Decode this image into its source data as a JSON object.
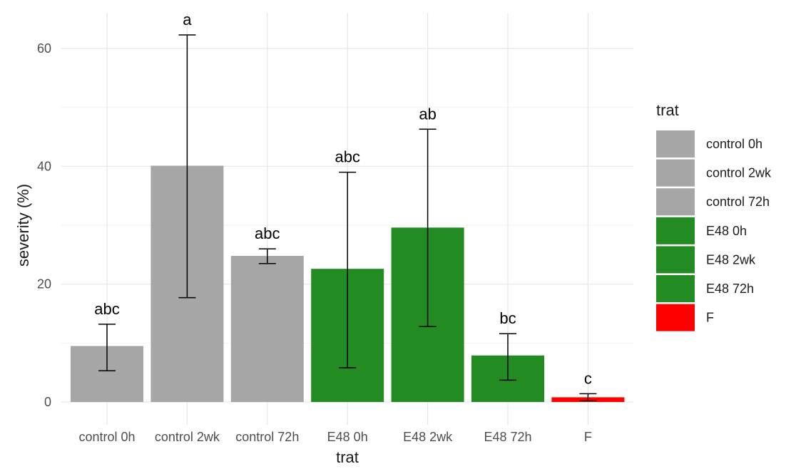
{
  "chart_data": {
    "type": "bar",
    "title": "",
    "xlabel": "trat",
    "ylabel": "severity (%)",
    "ylim": [
      0,
      66
    ],
    "yticks": [
      0,
      20,
      40,
      60
    ],
    "grid": true,
    "legend": {
      "title": "trat",
      "placement": "right",
      "entries": [
        {
          "label": "control 0h",
          "color": "#a6a6a6"
        },
        {
          "label": "control 2wk",
          "color": "#a6a6a6"
        },
        {
          "label": "control 72h",
          "color": "#a6a6a6"
        },
        {
          "label": "E48 0h",
          "color": "#228b22"
        },
        {
          "label": "E48 2wk",
          "color": "#228b22"
        },
        {
          "label": "E48 72h",
          "color": "#228b22"
        },
        {
          "label": "F",
          "color": "#ff0000"
        }
      ]
    },
    "categories": [
      "control 0h",
      "control 2wk",
      "control 72h",
      "E48 0h",
      "E48 2wk",
      "E48 72h",
      "F"
    ],
    "values": [
      9.5,
      40.1,
      24.8,
      22.6,
      29.6,
      7.9,
      0.8
    ],
    "error_low": [
      5.3,
      17.7,
      23.5,
      5.8,
      12.8,
      3.7,
      0.2
    ],
    "error_high": [
      13.2,
      62.3,
      26.0,
      39.0,
      46.3,
      11.6,
      1.4
    ],
    "letters": [
      "abc",
      "a",
      "abc",
      "abc",
      "ab",
      "bc",
      "c"
    ],
    "colors": [
      "#a6a6a6",
      "#a6a6a6",
      "#a6a6a6",
      "#228b22",
      "#228b22",
      "#228b22",
      "#ff0000"
    ]
  }
}
